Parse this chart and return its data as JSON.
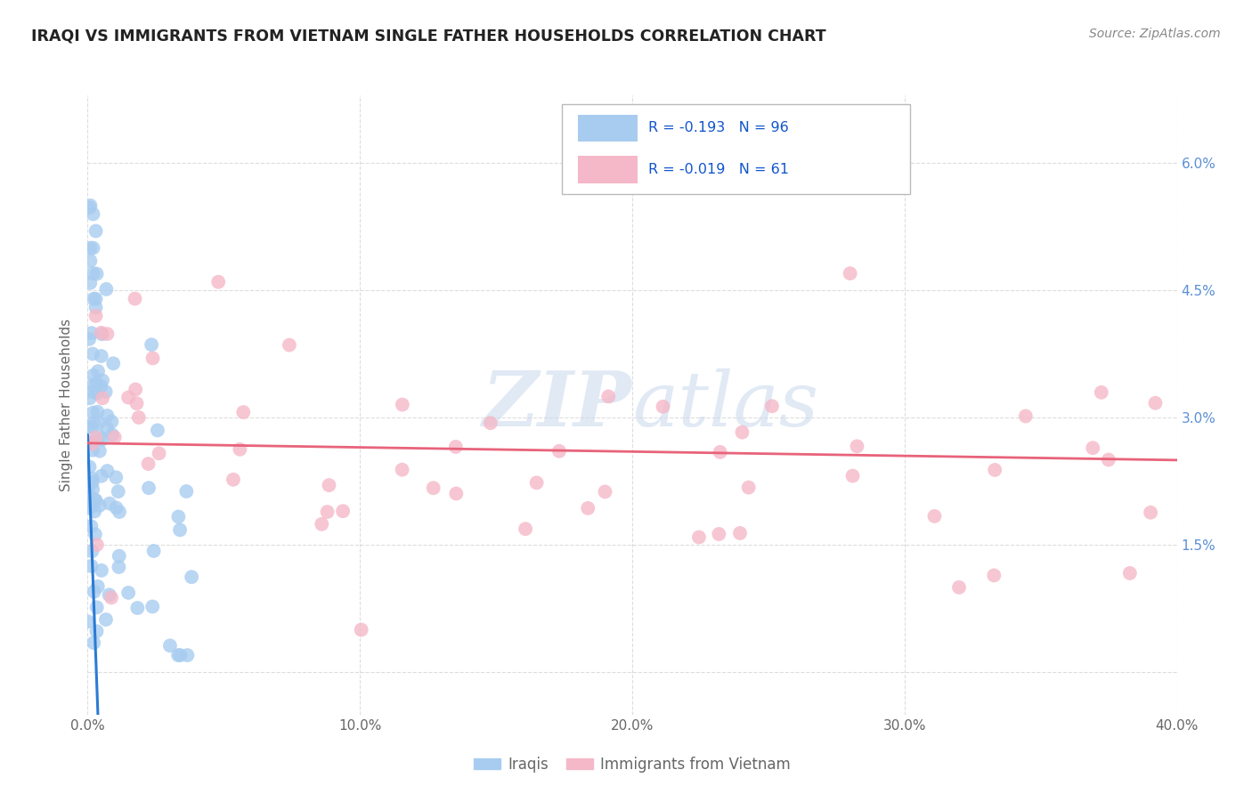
{
  "title": "IRAQI VS IMMIGRANTS FROM VIETNAM SINGLE FATHER HOUSEHOLDS CORRELATION CHART",
  "source": "Source: ZipAtlas.com",
  "ylabel": "Single Father Households",
  "ytick_labels": [
    "",
    "1.5%",
    "3.0%",
    "4.5%",
    "6.0%"
  ],
  "ytick_values": [
    0.0,
    0.015,
    0.03,
    0.045,
    0.06
  ],
  "xlim": [
    0.0,
    0.4
  ],
  "ylim": [
    -0.005,
    0.068
  ],
  "legend_blue_r": "R = -0.193",
  "legend_blue_n": "N = 96",
  "legend_pink_r": "R = -0.019",
  "legend_pink_n": "N = 61",
  "blue_color": "#A8CCF0",
  "pink_color": "#F5B8C8",
  "blue_line_color": "#2B7BD4",
  "pink_line_color": "#E8637A",
  "watermark_zip": "ZIP",
  "watermark_atlas": "atlas",
  "bg_color": "#FFFFFF",
  "grid_color": "#DDDDDD",
  "title_color": "#222222",
  "source_color": "#888888",
  "axis_color": "#5B8FD4",
  "label_color": "#666666",
  "legend_r_color": "#1155CC",
  "legend_n_color": "#1155CC"
}
